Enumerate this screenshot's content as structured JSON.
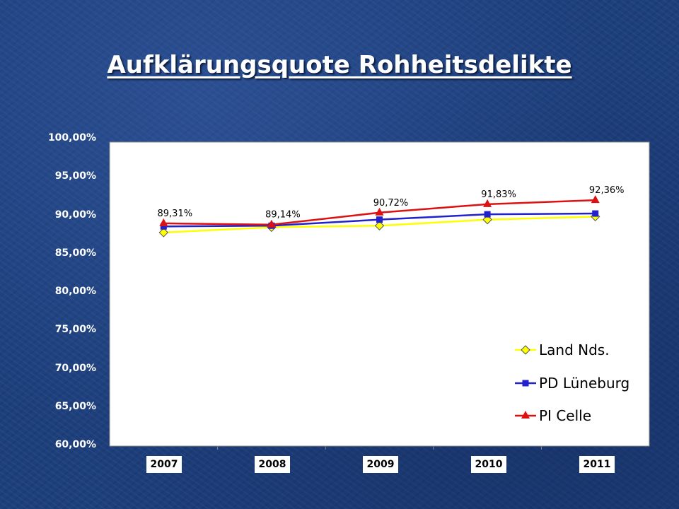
{
  "slide": {
    "title": " Aufklärungsquote Rohheitsdelikte"
  },
  "chart_data": {
    "type": "line",
    "title": "",
    "xlabel": "",
    "ylabel": "",
    "categories": [
      "2007",
      "2008",
      "2009",
      "2010",
      "2011"
    ],
    "y_ticks": [
      "60,00%",
      "65,00%",
      "70,00%",
      "75,00%",
      "80,00%",
      "85,00%",
      "90,00%",
      "95,00%",
      "100,00%"
    ],
    "ylim": [
      60,
      100
    ],
    "grid": false,
    "legend_position": "bottom-right",
    "series": [
      {
        "name": "Land Nds.",
        "values": [
          88.1,
          88.8,
          89.0,
          89.8,
          90.2
        ],
        "color": "#ffff00",
        "marker": "diamond"
      },
      {
        "name": "PD Lüneburg",
        "values": [
          88.9,
          89.0,
          89.8,
          90.5,
          90.6
        ],
        "color": "#2222cc",
        "marker": "square"
      },
      {
        "name": "PI Celle",
        "values": [
          89.31,
          89.14,
          90.72,
          91.83,
          92.36
        ],
        "color": "#dd1111",
        "marker": "triangle",
        "labels": [
          "89,31%",
          "89,14%",
          "90,72%",
          "91,83%",
          "92,36%"
        ]
      }
    ]
  }
}
